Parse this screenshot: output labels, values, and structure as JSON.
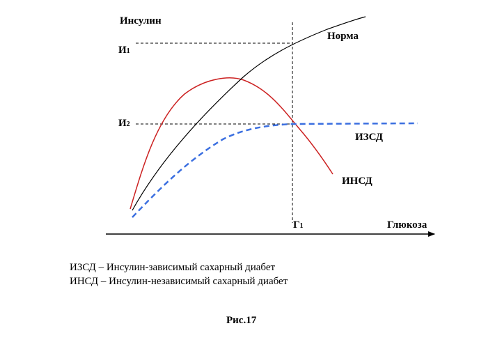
{
  "figure": {
    "y_axis_label": "Инсулин",
    "x_axis_label": "Глюкоза",
    "i1_letter": "И",
    "i1_index": "1",
    "i2_letter": "И",
    "i2_index": "2",
    "g1_letter": "Г",
    "g1_index": "1",
    "curves": {
      "norm": {
        "label": "Норма",
        "color": "#000000",
        "style": "solid"
      },
      "izsd": {
        "label": "ИЗСД",
        "color": "#3b6fe0",
        "style": "dashed"
      },
      "insd": {
        "label": "ИНСД",
        "color": "#cc2222",
        "style": "solid"
      }
    }
  },
  "legend": {
    "line1": "ИЗСД – Инсулин-зависимый сахарный диабет",
    "line2": "ИНСД – Инсулин-независимый сахарный диабет"
  },
  "caption": "Рис.17"
}
